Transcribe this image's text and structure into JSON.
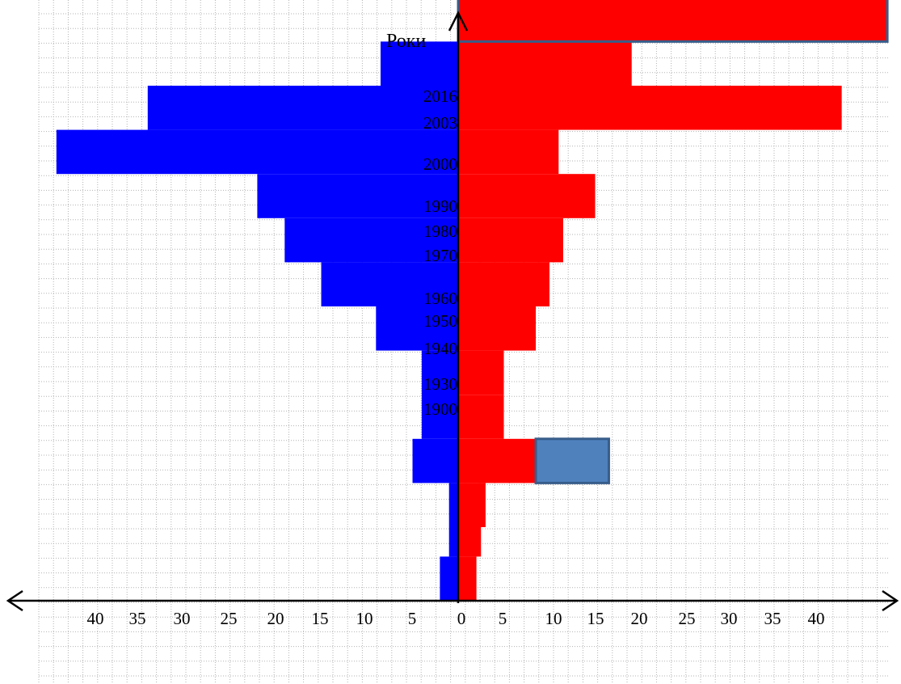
{
  "chart_data": {
    "type": "bar",
    "orientation": "horizontal",
    "ylabel": "Роки",
    "year_labels": [
      "2016",
      "2003",
      "2000",
      "1990",
      "1980",
      "1970",
      "1960",
      "1950",
      "1940",
      "1930",
      "1900"
    ],
    "x_tick_labels_left": [
      "40",
      "35",
      "30",
      "25",
      "20",
      "15",
      "10",
      "5"
    ],
    "x_tick_labels_right": [
      "0",
      "5",
      "10",
      "15",
      "20",
      "25",
      "30",
      "35",
      "40"
    ],
    "grid": true,
    "colors": {
      "left": "#0000ff",
      "right": "#ff0000",
      "highlight": "#4f81bd",
      "highlight_border": "#385d8a",
      "axis": "#000000",
      "grid": "#b3b3b3"
    },
    "series": [
      {
        "side": "left",
        "bars": [
          {
            "y_top": 0,
            "y_bottom": 3,
            "value": 2
          },
          {
            "y_top": 3,
            "y_bottom": 8,
            "value": 1
          },
          {
            "y_top": 8,
            "y_bottom": 11,
            "value": 5
          },
          {
            "y_top": 11,
            "y_bottom": 17,
            "value": 4
          },
          {
            "y_top": 17,
            "y_bottom": 20,
            "value": 9
          },
          {
            "y_top": 20,
            "y_bottom": 23,
            "value": 15
          },
          {
            "y_top": 23,
            "y_bottom": 26,
            "value": 19
          },
          {
            "y_top": 26,
            "y_bottom": 29,
            "value": 22
          },
          {
            "y_top": 29,
            "y_bottom": 32,
            "value": 44
          },
          {
            "y_top": 32,
            "y_bottom": 35,
            "value": 34
          },
          {
            "y_top": 35,
            "y_bottom": 38,
            "value": 8.5
          }
        ]
      },
      {
        "side": "right",
        "bars": [
          {
            "y_top": 0,
            "y_bottom": 3,
            "value": 2
          },
          {
            "y_top": 3,
            "y_bottom": 5,
            "value": 2.5
          },
          {
            "y_top": 5,
            "y_bottom": 8,
            "value": 3
          },
          {
            "y_top": 8,
            "y_bottom": 11,
            "value": 8.5
          },
          {
            "y_top": 11,
            "y_bottom": 14,
            "value": 5
          },
          {
            "y_top": 14,
            "y_bottom": 17,
            "value": 5
          },
          {
            "y_top": 17,
            "y_bottom": 20,
            "value": 8.5
          },
          {
            "y_top": 20,
            "y_bottom": 23,
            "value": 10
          },
          {
            "y_top": 23,
            "y_bottom": 26,
            "value": 11.5
          },
          {
            "y_top": 26,
            "y_bottom": 29,
            "value": 15
          },
          {
            "y_top": 29,
            "y_bottom": 32,
            "value": 11
          },
          {
            "y_top": 32,
            "y_bottom": 35,
            "value": 42
          },
          {
            "y_top": 35,
            "y_bottom": 38,
            "value": 19
          },
          {
            "y_top": 38,
            "y_bottom": 41,
            "value": 47
          }
        ]
      }
    ],
    "highlights": [
      {
        "y_top": 8,
        "y_bottom": 11,
        "x_start": 8.5,
        "x_end": 16.5
      },
      {
        "y_top": 38,
        "y_bottom": 41,
        "x_start": 0,
        "x_end": 47
      }
    ]
  }
}
